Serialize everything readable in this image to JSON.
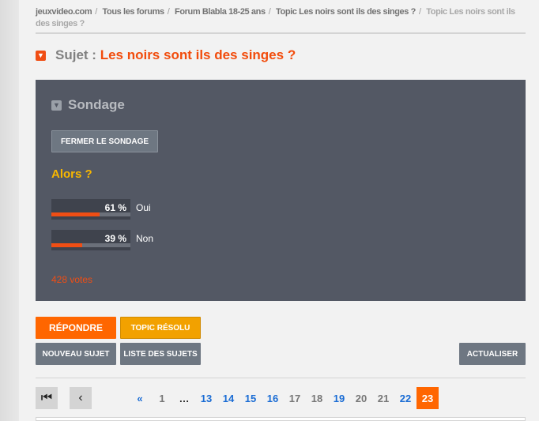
{
  "breadcrumb": [
    "jeuxvideo.com",
    "Tous les forums",
    "Forum Blabla 18-25 ans",
    "Topic Les noirs sont ils des singes ?",
    "Topic Les noirs sont ils des singes ?"
  ],
  "subject": {
    "label": "Sujet : ",
    "title": "Les noirs sont ils des singes ?"
  },
  "poll": {
    "heading": "Sondage",
    "close_label": "FERMER LE SONDAGE",
    "question": "Alors ?",
    "answers": [
      {
        "percent_text": "61 %",
        "percent": 61,
        "label": "Oui"
      },
      {
        "percent_text": "39 %",
        "percent": 39,
        "label": "Non"
      }
    ],
    "votes": "428 votes"
  },
  "actions": {
    "reply": "RÉPONDRE",
    "resolved": "TOPIC RÉSOLU",
    "new_topic": "NOUVEAU SUJET",
    "topic_list": "LISTE DES SUJETS",
    "refresh": "ACTUALISER"
  },
  "colors": {
    "accent": "#ff6600",
    "link": "#1a6cd4",
    "poll_bg": "#535864"
  },
  "pagination": {
    "first_icon": "first-page-icon",
    "prev_icon": "prev-page-icon",
    "first_label": "«",
    "pages": [
      {
        "n": "1",
        "link": false
      },
      {
        "n": "…",
        "link": false
      },
      {
        "n": "13",
        "link": true
      },
      {
        "n": "14",
        "link": true
      },
      {
        "n": "15",
        "link": true
      },
      {
        "n": "16",
        "link": true
      },
      {
        "n": "17",
        "link": false
      },
      {
        "n": "18",
        "link": false
      },
      {
        "n": "19",
        "link": true
      },
      {
        "n": "20",
        "link": false
      },
      {
        "n": "21",
        "link": false
      },
      {
        "n": "22",
        "link": true
      },
      {
        "n": "23",
        "current": true
      }
    ]
  }
}
